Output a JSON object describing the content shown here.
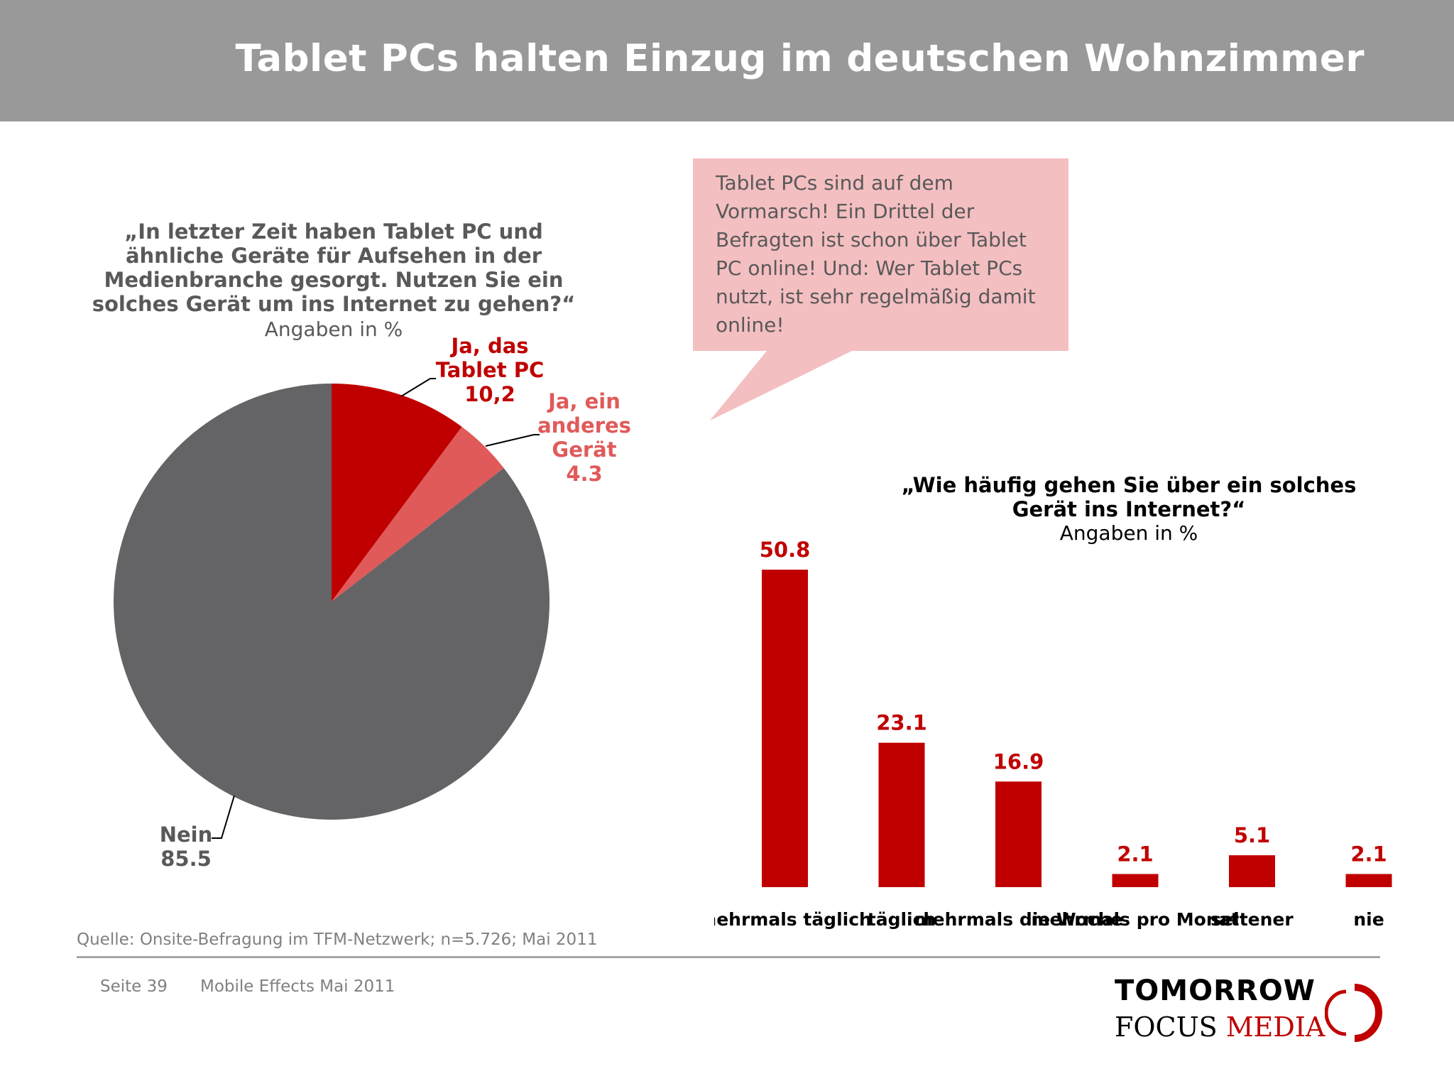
{
  "header": {
    "title": "Tablet PCs halten Einzug im deutschen Wohnzimmer"
  },
  "colors": {
    "dark_red": "#c00000",
    "light_red": "#e05a5a",
    "gray": "#646466",
    "callout_bg": "#f4bfc1",
    "header_bg": "#999999"
  },
  "callout": {
    "text": "Tablet PCs sind auf dem\nVormarsch! Ein Drittel der\nBefragten ist schon über Tablet\nPC online! Und: Wer Tablet PCs\nnutzt, ist sehr regelmäßig damit\nonline!"
  },
  "chart_data": [
    {
      "type": "pie",
      "title": "„In letzter Zeit haben Tablet PC und\nähnliche Geräte für Aufsehen in der\nMedienbranche gesorgt. Nutzen Sie ein\nsolches Gerät um ins Internet zu gehen?“",
      "subtitle": "Angaben in %",
      "slices": [
        {
          "label_lines": [
            "Ja, das",
            "Tablet PC"
          ],
          "value_label": "10,2",
          "value": 10.2,
          "color": "#c00000"
        },
        {
          "label_lines": [
            "Ja, ein",
            "anderes",
            "Gerät"
          ],
          "value_label": "4.3",
          "value": 4.3,
          "color": "#e05a5a"
        },
        {
          "label_lines": [
            "Nein"
          ],
          "value_label": "85.5",
          "value": 85.5,
          "color": "#646466"
        }
      ]
    },
    {
      "type": "bar",
      "title": "„Wie häufig gehen Sie über ein solches\nGerät ins Internet?“",
      "subtitle": "Angaben in %",
      "categories": [
        "mehrmals täglich",
        "täglich",
        "mehrmals die Woche",
        "mehrmals pro Monat",
        "seltener",
        "nie"
      ],
      "values": [
        50.8,
        23.1,
        16.9,
        2.1,
        5.1,
        2.1
      ],
      "value_labels": [
        "50.8",
        "23.1",
        "16.9",
        "2.1",
        "5.1",
        "2.1"
      ],
      "bar_color": "#c00000",
      "label_color": "#c00000"
    }
  ],
  "footer": {
    "source": "Quelle: Onsite-Befragung im TFM-Netzwerk; n=5.726; Mai 2011",
    "page": "Seite 39",
    "doc": "Mobile Effects Mai 2011"
  },
  "logo": {
    "line1": "TOMORROW",
    "line2_a": "FOCUS ",
    "line2_b": "MEDIA"
  }
}
